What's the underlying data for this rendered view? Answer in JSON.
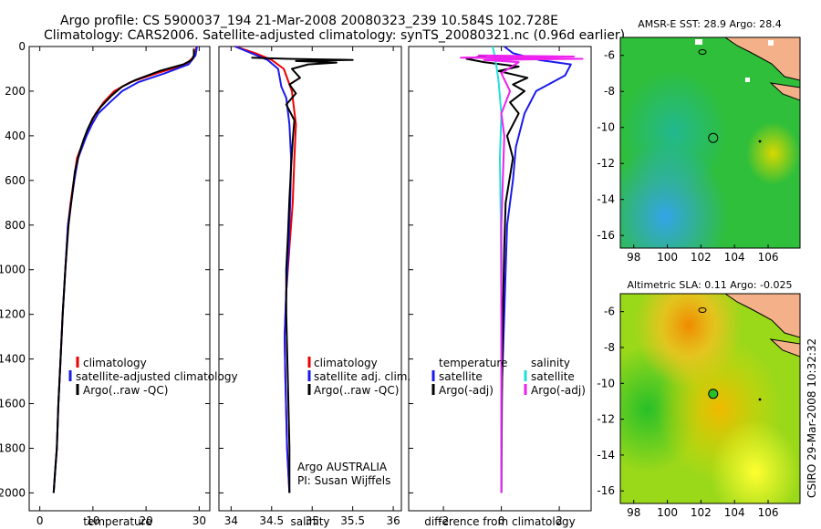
{
  "header": {
    "line1": "Argo profile: CS 5900037_194 21-Mar-2008 20080323_239 10.584S 102.728E",
    "line2": "Climatology: CARS2006. Satellite-adjusted climatology: synTS_20080321.nc (0.96d earlier)"
  },
  "side_stamp": "CSIRO 29-Mar-2008 10:32:32",
  "annotation": {
    "line1": "Argo AUSTRALIA",
    "line2": "PI: Susan Wijffels"
  },
  "colors": {
    "climatology": "#ee0000",
    "satellite": "#1a1aee",
    "argo": "#000000",
    "sal_sat": "#22dddd",
    "sal_argo": "#ee22ee"
  },
  "chart_data": [
    {
      "type": "line",
      "name": "temperature",
      "xlabel": "temperature",
      "ylabel": "",
      "xlim": [
        -2,
        32
      ],
      "ylim": [
        0,
        2080
      ],
      "y_inverted": true,
      "x_ticks": [
        0,
        10,
        20,
        30
      ],
      "y_ticks": [
        0,
        200,
        400,
        600,
        800,
        1000,
        1200,
        1400,
        1600,
        1800,
        2000
      ],
      "legend": [
        "climatology",
        "satellite-adjusted climatology",
        "Argo(..raw -QC)"
      ],
      "series": [
        {
          "name": "climatology",
          "color_key": "climatology",
          "x": [
            29.5,
            29.2,
            27.5,
            22,
            17,
            14,
            12,
            10.5,
            9.5,
            8.6,
            7.8,
            7.0,
            6.4,
            5.8,
            5.3,
            4.8,
            4.3,
            3.9,
            3.5,
            3.2,
            2.9,
            2.6
          ],
          "y": [
            0,
            40,
            80,
            120,
            160,
            200,
            250,
            300,
            350,
            400,
            450,
            500,
            600,
            700,
            800,
            1000,
            1200,
            1400,
            1600,
            1800,
            1900,
            2000
          ]
        },
        {
          "name": "satellite",
          "color_key": "satellite",
          "x": [
            29.6,
            29.3,
            28.0,
            23.5,
            18.5,
            15.5,
            13.2,
            11.0,
            9.8,
            8.8,
            8.0,
            7.2,
            6.5,
            5.9,
            5.3,
            4.8,
            4.3,
            3.9,
            3.5,
            3.2,
            2.9,
            2.6
          ],
          "y": [
            0,
            40,
            80,
            120,
            160,
            200,
            250,
            300,
            350,
            400,
            450,
            500,
            600,
            700,
            800,
            1000,
            1200,
            1400,
            1600,
            1800,
            1900,
            2000
          ]
        },
        {
          "name": "argo",
          "color_key": "argo",
          "x": [
            29.0,
            29.0,
            28.6,
            27.0,
            22.5,
            18.0,
            15.5,
            13.5,
            11.5,
            10.0,
            9.0,
            8.2,
            7.4,
            6.6,
            6.0,
            5.4,
            4.8,
            4.3,
            3.9,
            3.5,
            3.2,
            2.9,
            2.6
          ],
          "y": [
            10,
            40,
            60,
            80,
            110,
            150,
            180,
            220,
            270,
            320,
            370,
            420,
            480,
            560,
            680,
            800,
            1000,
            1200,
            1400,
            1600,
            1800,
            1900,
            2000
          ]
        }
      ]
    },
    {
      "type": "line",
      "name": "salinity",
      "xlabel": "salinity",
      "ylabel": "",
      "xlim": [
        33.85,
        36.1
      ],
      "ylim": [
        0,
        2080
      ],
      "y_inverted": true,
      "x_ticks": [
        34,
        34.5,
        35,
        35.5,
        36
      ],
      "x_tick_labels": [
        "34",
        "34.5",
        "35",
        "35.5",
        "36"
      ],
      "legend": [
        "climatology",
        "satellite adj. clim.",
        "Argo(..raw -QC)"
      ],
      "series": [
        {
          "name": "climatology",
          "color_key": "climatology",
          "x": [
            34.05,
            34.3,
            34.5,
            34.65,
            34.75,
            34.8,
            34.78,
            34.76,
            34.72,
            34.68,
            34.66,
            34.67,
            34.69,
            34.72
          ],
          "y": [
            0,
            30,
            60,
            100,
            200,
            350,
            500,
            700,
            900,
            1100,
            1300,
            1500,
            1800,
            2000
          ]
        },
        {
          "name": "satellite",
          "color_key": "satellite",
          "x": [
            34.05,
            34.25,
            34.45,
            34.58,
            34.62,
            34.68,
            34.72,
            34.74,
            34.73,
            34.71,
            34.68,
            34.66,
            34.67,
            34.69,
            34.72
          ],
          "y": [
            0,
            30,
            60,
            100,
            180,
            230,
            350,
            500,
            700,
            900,
            1100,
            1300,
            1500,
            1800,
            2000
          ]
        },
        {
          "name": "argo",
          "color_key": "argo",
          "x": [
            34.25,
            34.7,
            35.5,
            34.8,
            35.3,
            34.95,
            34.75,
            34.85,
            34.72,
            34.8,
            34.68,
            34.78,
            34.76,
            34.74,
            34.72,
            34.7,
            34.68,
            34.68,
            34.7,
            34.72,
            34.72
          ],
          "y": [
            50,
            55,
            60,
            65,
            72,
            80,
            100,
            140,
            170,
            210,
            260,
            330,
            420,
            540,
            680,
            850,
            1000,
            1200,
            1500,
            1800,
            2000
          ]
        }
      ]
    },
    {
      "type": "line",
      "name": "difference",
      "xlabel": "difference from climatology",
      "ylabel": "",
      "xlim": [
        -3.2,
        3.1
      ],
      "ylim": [
        0,
        2080
      ],
      "y_inverted": true,
      "x_ticks": [
        -2,
        0,
        2
      ],
      "legend_left_title": "temperature",
      "legend_right_title": "salinity",
      "legend_left": [
        "satellite",
        "Argo(-adj)"
      ],
      "legend_right": [
        "satellite",
        "Argo(-adj)"
      ],
      "series": [
        {
          "name": "temp satellite",
          "color_key": "satellite",
          "x": [
            0.1,
            0.4,
            1.3,
            2.4,
            2.2,
            1.2,
            0.8,
            0.5,
            0.4,
            0.2,
            0.15,
            0.1,
            0.05,
            0.0,
            0.0,
            0.0
          ],
          "y": [
            0,
            30,
            60,
            80,
            130,
            200,
            300,
            450,
            600,
            800,
            1000,
            1200,
            1400,
            1600,
            1800,
            2000
          ]
        },
        {
          "name": "temp argo",
          "color_key": "argo",
          "x": [
            -0.5,
            -1.2,
            -0.6,
            0.6,
            -0.1,
            0.9,
            0.4,
            0.8,
            0.3,
            0.6,
            0.2,
            0.4,
            0.15,
            0.1,
            0.05,
            0.02,
            0.0
          ],
          "y": [
            40,
            55,
            70,
            90,
            110,
            140,
            170,
            200,
            250,
            300,
            400,
            500,
            700,
            900,
            1200,
            1600,
            2000
          ]
        },
        {
          "name": "sal satellite",
          "color_key": "sal_sat",
          "x": [
            -0.3,
            -0.2,
            -0.1,
            0.0,
            -0.05,
            -0.02,
            0.0,
            0.0,
            0.0
          ],
          "y": [
            0,
            60,
            150,
            300,
            500,
            800,
            1200,
            1600,
            2000
          ]
        },
        {
          "name": "sal argo",
          "color_key": "sal_argo",
          "x": [
            -0.8,
            2.5,
            -1.4,
            2.8,
            -0.6,
            0.6,
            0.0,
            0.3,
            0.0,
            0.1,
            0.0,
            0.0
          ],
          "y": [
            40,
            45,
            50,
            55,
            60,
            70,
            120,
            200,
            300,
            400,
            800,
            2000
          ]
        }
      ]
    },
    {
      "type": "heatmap",
      "name": "sst-map",
      "title": "AMSR-E SST: 28.9  Argo: 28.4",
      "xlim": [
        97.2,
        107.9
      ],
      "ylim": [
        -16.7,
        -5.0
      ],
      "x_ticks": [
        98,
        100,
        102,
        104,
        106
      ],
      "y_ticks": [
        -6,
        -8,
        -10,
        -12,
        -14,
        -16
      ],
      "argo_position": [
        102.728,
        -10.584
      ]
    },
    {
      "type": "heatmap",
      "name": "sla-map",
      "title": "Altimetric SLA: 0.11  Argo: -0.025",
      "xlim": [
        97.2,
        107.9
      ],
      "ylim": [
        -16.7,
        -5.0
      ],
      "x_ticks": [
        98,
        100,
        102,
        104,
        106
      ],
      "y_ticks": [
        -6,
        -8,
        -10,
        -12,
        -14,
        -16
      ],
      "argo_position": [
        102.728,
        -10.584
      ]
    }
  ]
}
